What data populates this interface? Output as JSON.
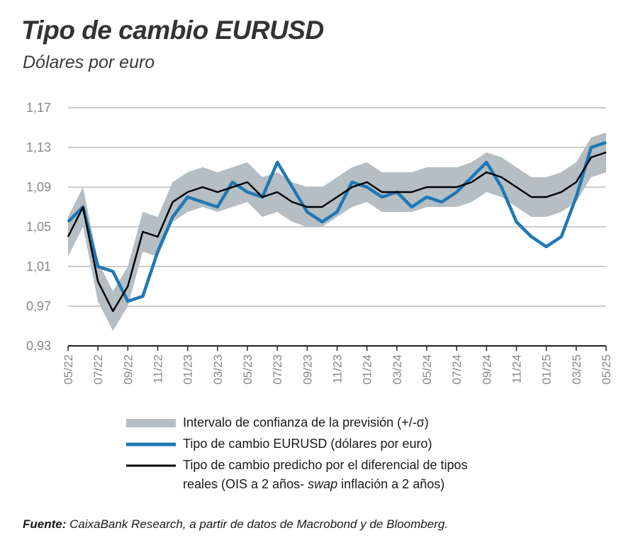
{
  "title": "Tipo de cambio EURUSD",
  "subtitle": "Dólares por euro",
  "source": {
    "label": "Fuente:",
    "text": " CaixaBank Research, a partir de datos de Macrobond y de Bloomberg."
  },
  "legend": {
    "band": "Intervalo de confianza de la previsión (+/-σ)",
    "actual": "Tipo de cambio EURUSD (dólares por euro)",
    "predicted_line1": "Tipo de cambio predicho por el diferencial de tipos",
    "predicted_line2_a": "reales (OIS a 2 años- ",
    "predicted_line2_b": "swap",
    "predicted_line2_c": " inflación a 2 años)"
  },
  "colors": {
    "band": "#b4bec3",
    "actual": "#1f78b4",
    "predicted": "#000000",
    "grid": "#9a9a9a"
  },
  "chart_data": {
    "type": "line",
    "ylim": [
      0.93,
      1.17
    ],
    "yticks": [
      "0,93",
      "0,97",
      "1,01",
      "1,05",
      "1,09",
      "1,13",
      "1,17"
    ],
    "ytick_values": [
      0.93,
      0.97,
      1.01,
      1.05,
      1.09,
      1.13,
      1.17
    ],
    "xticks": [
      "05/22",
      "07/22",
      "09/22",
      "11/22",
      "01/23",
      "03/23",
      "05/23",
      "07/23",
      "09/23",
      "11/23",
      "01/24",
      "03/24",
      "05/24",
      "07/24",
      "09/24",
      "11/24",
      "01/25",
      "03/25",
      "05/25"
    ],
    "x": [
      "05/22",
      "06/22",
      "07/22",
      "08/22",
      "09/22",
      "10/22",
      "11/22",
      "12/22",
      "01/23",
      "02/23",
      "03/23",
      "04/23",
      "05/23",
      "06/23",
      "07/23",
      "08/23",
      "09/23",
      "10/23",
      "11/23",
      "12/23",
      "01/24",
      "02/24",
      "03/24",
      "04/24",
      "05/24",
      "06/24",
      "07/24",
      "08/24",
      "09/24",
      "10/24",
      "11/24",
      "12/24",
      "01/25",
      "02/25",
      "03/25",
      "04/25",
      "05/25"
    ],
    "series": [
      {
        "name": "Tipo de cambio EURUSD (dólares por euro)",
        "values": [
          1.055,
          1.07,
          1.01,
          1.005,
          0.975,
          0.98,
          1.025,
          1.06,
          1.08,
          1.075,
          1.07,
          1.095,
          1.085,
          1.08,
          1.115,
          1.09,
          1.065,
          1.055,
          1.065,
          1.095,
          1.09,
          1.08,
          1.085,
          1.07,
          1.08,
          1.075,
          1.085,
          1.1,
          1.115,
          1.09,
          1.055,
          1.04,
          1.03,
          1.04,
          1.08,
          1.13,
          1.135
        ]
      },
      {
        "name": "Tipo de cambio predicho por el diferencial de tipos reales (OIS a 2 años- swap inflación a 2 años)",
        "values": [
          1.04,
          1.07,
          0.995,
          0.965,
          0.99,
          1.045,
          1.04,
          1.075,
          1.085,
          1.09,
          1.085,
          1.09,
          1.095,
          1.08,
          1.085,
          1.075,
          1.07,
          1.07,
          1.08,
          1.09,
          1.095,
          1.085,
          1.085,
          1.085,
          1.09,
          1.09,
          1.09,
          1.095,
          1.105,
          1.1,
          1.09,
          1.08,
          1.08,
          1.085,
          1.095,
          1.12,
          1.125
        ]
      },
      {
        "name": "Intervalo de confianza de la previsión (+/-σ)",
        "lower": [
          1.02,
          1.05,
          0.975,
          0.945,
          0.97,
          1.025,
          1.02,
          1.055,
          1.065,
          1.07,
          1.065,
          1.07,
          1.075,
          1.06,
          1.065,
          1.055,
          1.05,
          1.05,
          1.06,
          1.07,
          1.075,
          1.065,
          1.065,
          1.065,
          1.07,
          1.07,
          1.07,
          1.075,
          1.085,
          1.08,
          1.07,
          1.06,
          1.06,
          1.065,
          1.075,
          1.1,
          1.105
        ],
        "upper": [
          1.06,
          1.09,
          1.015,
          0.985,
          1.01,
          1.065,
          1.06,
          1.095,
          1.105,
          1.11,
          1.105,
          1.11,
          1.115,
          1.1,
          1.105,
          1.095,
          1.09,
          1.09,
          1.1,
          1.11,
          1.115,
          1.105,
          1.105,
          1.105,
          1.11,
          1.11,
          1.11,
          1.115,
          1.125,
          1.12,
          1.11,
          1.1,
          1.1,
          1.105,
          1.115,
          1.14,
          1.145
        ]
      }
    ]
  }
}
